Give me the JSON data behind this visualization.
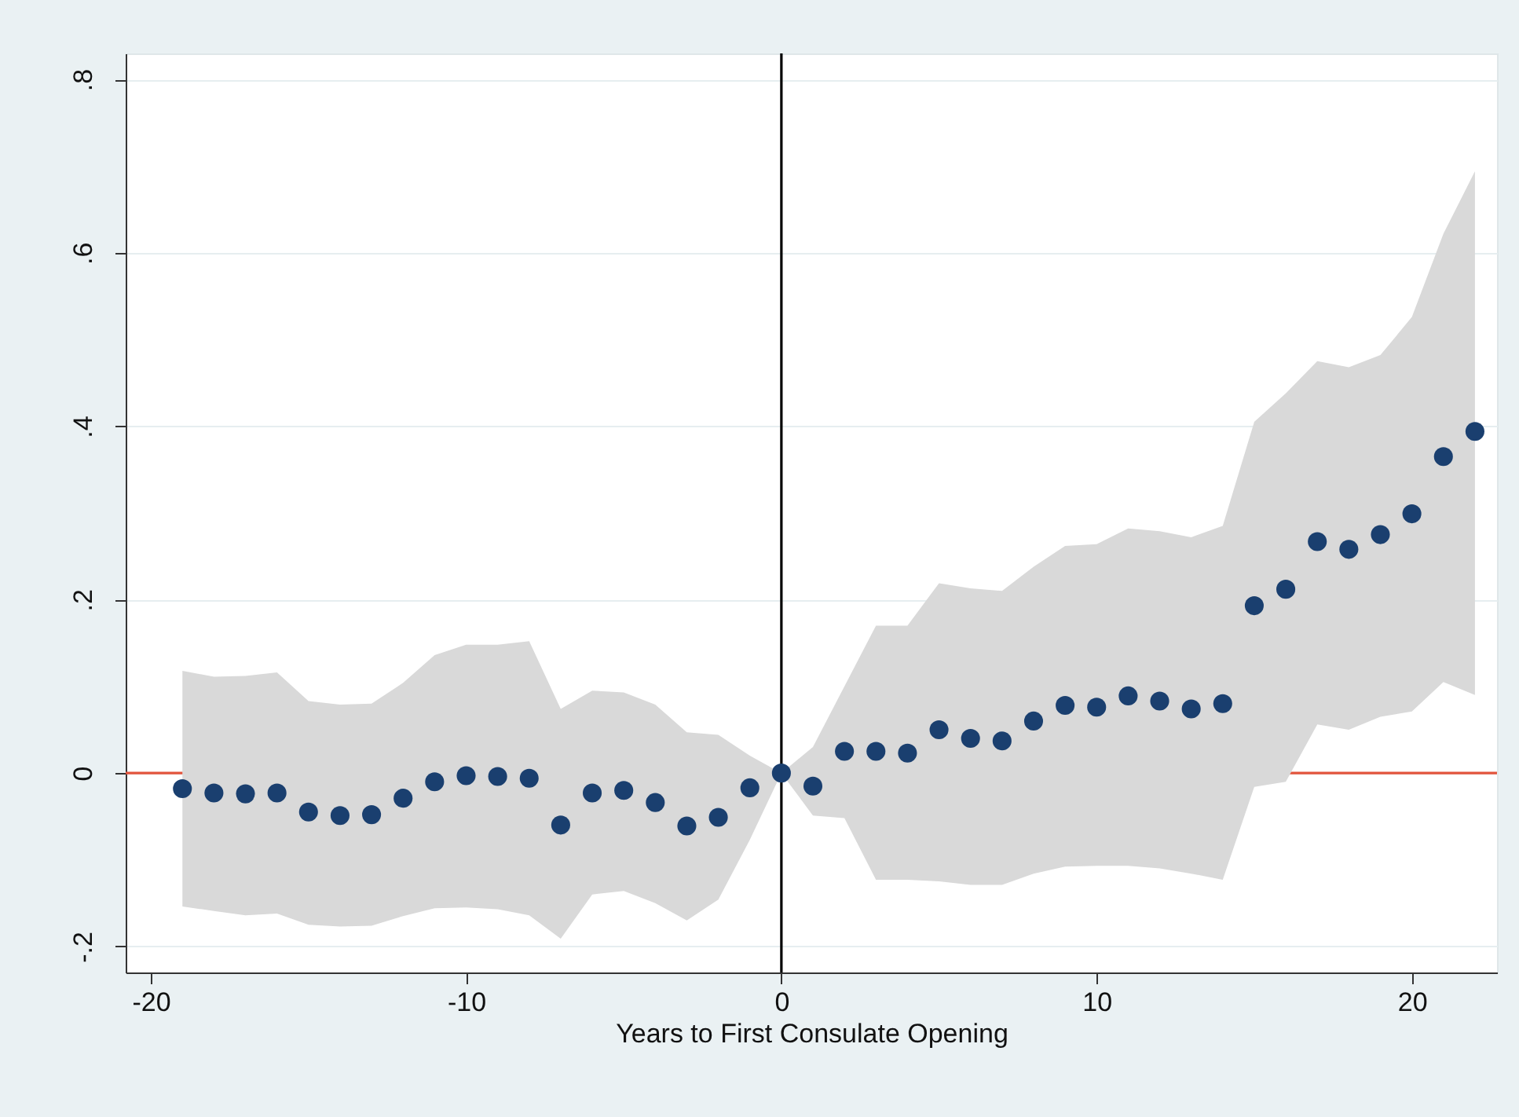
{
  "chart_data": {
    "type": "scatter",
    "xlabel": "Years to First Consulate Opening",
    "x": [
      -19,
      -18,
      -17,
      -16,
      -15,
      -14,
      -13,
      -12,
      -11,
      -10,
      -9,
      -8,
      -7,
      -6,
      -5,
      -4,
      -3,
      -2,
      -1,
      0,
      1,
      2,
      3,
      4,
      5,
      6,
      7,
      8,
      9,
      10,
      11,
      12,
      13,
      14,
      15,
      16,
      17,
      18,
      19,
      20,
      21,
      22
    ],
    "series": [
      {
        "color": "#1a3f6f",
        "values": [
          -0.018,
          -0.023,
          -0.024,
          -0.023,
          -0.045,
          -0.049,
          -0.048,
          -0.029,
          -0.01,
          -0.003,
          -0.004,
          -0.006,
          -0.06,
          -0.023,
          -0.02,
          -0.034,
          -0.061,
          -0.051,
          -0.017,
          0,
          -0.015,
          0.025,
          0.025,
          0.023,
          0.05,
          0.04,
          0.037,
          0.06,
          0.078,
          0.076,
          0.089,
          0.083,
          0.074,
          0.08,
          0.193,
          0.212,
          0.267,
          0.258,
          0.275,
          0.299,
          0.365,
          0.394
        ],
        "lower": [
          -0.154,
          -0.159,
          -0.164,
          -0.162,
          -0.175,
          -0.177,
          -0.176,
          -0.165,
          -0.156,
          -0.155,
          -0.157,
          -0.164,
          -0.191,
          -0.14,
          -0.136,
          -0.15,
          -0.17,
          -0.146,
          -0.077,
          0,
          -0.049,
          -0.052,
          -0.123,
          -0.123,
          -0.125,
          -0.129,
          -0.129,
          -0.116,
          -0.108,
          -0.107,
          -0.107,
          -0.11,
          -0.116,
          -0.123,
          -0.016,
          -0.01,
          0.056,
          0.05,
          0.065,
          0.071,
          0.105,
          0.09
        ],
        "upper": [
          0.118,
          0.111,
          0.112,
          0.116,
          0.083,
          0.079,
          0.08,
          0.104,
          0.136,
          0.148,
          0.148,
          0.152,
          0.074,
          0.095,
          0.093,
          0.079,
          0.047,
          0.044,
          0.02,
          0,
          0.03,
          0.1,
          0.17,
          0.17,
          0.219,
          0.213,
          0.21,
          0.238,
          0.262,
          0.264,
          0.282,
          0.279,
          0.272,
          0.285,
          0.405,
          0.438,
          0.475,
          0.468,
          0.482,
          0.526,
          0.622,
          0.694
        ]
      }
    ],
    "xlim": [
      -20.8,
      22.7
    ],
    "ylim": [
      -0.23,
      0.83
    ],
    "xticks": [
      -20,
      -10,
      0,
      10,
      20
    ],
    "yticks": [
      {
        "value": -0.2,
        "label": "-.2"
      },
      0,
      {
        "value": 0.2,
        "label": ".2"
      },
      {
        "value": 0.4,
        "label": ".4"
      },
      {
        "value": 0.6,
        "label": ".6"
      },
      {
        "value": 0.8,
        "label": ".8"
      }
    ],
    "grid": "y",
    "marker": "circle",
    "ref_lines": [
      {
        "axis": "y",
        "value": 0,
        "color": "#e3543c"
      },
      {
        "axis": "x",
        "value": 0,
        "color": "#000000"
      }
    ]
  }
}
